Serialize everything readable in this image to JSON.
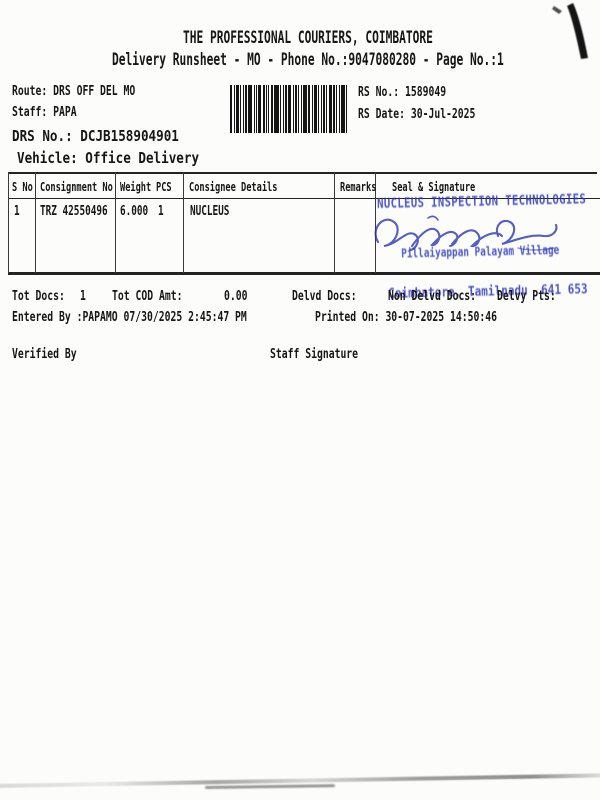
{
  "header": {
    "title": "THE PROFESSIONAL COURIERS, COIMBATORE",
    "subtitle": "Delivery Runsheet - MO - Phone No.:9047080280 - Page No.:1"
  },
  "info": {
    "route_label": "Route:",
    "route_value": "DRS OFF DEL MO",
    "staff_label": "Staff:",
    "staff_value": "PAPA",
    "drs_no_label": "DRS No.:",
    "drs_no_value": "DCJB158904901",
    "vehicle_label": "Vehicle:",
    "vehicle_value": "Office Delivery",
    "rs_no_label": "RS No.:",
    "rs_no_value": "1589049",
    "rs_date_label": "RS Date:",
    "rs_date_value": "30-Jul-2025"
  },
  "table": {
    "headers": [
      "S No",
      "Consignment No",
      "Weight",
      "PCS",
      "Consignee Details",
      "Remarks",
      "Seal & Signature"
    ],
    "rows": [
      {
        "s_no": "1",
        "consignment_no": "TRZ 42550496",
        "weight": "6.000",
        "pcs": "1",
        "consignee": "NUCLEUS",
        "remarks": ""
      }
    ]
  },
  "stamp": {
    "color": "#2e38b5",
    "line1": "NUCLEUS INSPECTION TECHNOLOGIES",
    "line2": "Pillaiyappan Palayam Village",
    "line3": "Coimbatore, Tamilnadu  641 653"
  },
  "totals": {
    "tot_docs_label": "Tot Docs:",
    "tot_docs_value": "1",
    "tot_cod_label": "Tot COD Amt:",
    "tot_cod_value": "0.00",
    "delvd_docs_label": "Delvd Docs:",
    "non_delvd_docs_label": "Non Delvd Docs:",
    "delvy_pts_label": "Delvy Pts:"
  },
  "footer": {
    "entered_by": "Entered By :PAPAMO 07/30/2025 2:45:47 PM",
    "printed_on": "Printed On: 30-07-2025 14:50:46",
    "verified_by_label": "Verified By",
    "staff_signature_label": "Staff Signature"
  }
}
